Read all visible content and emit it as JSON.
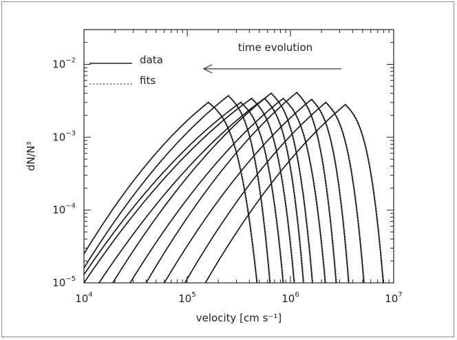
{
  "chart_data": {
    "type": "line",
    "xlabel": "velocity [cm s⁻¹]",
    "ylabel": "dN/N³",
    "xscale": "log",
    "yscale": "log",
    "xlim": [
      10000,
      10000000
    ],
    "ylim": [
      1e-05,
      0.03
    ],
    "x_ticks": [
      {
        "base": "10",
        "exp": "4",
        "value": 10000
      },
      {
        "base": "10",
        "exp": "5",
        "value": 100000
      },
      {
        "base": "10",
        "exp": "6",
        "value": 1000000
      },
      {
        "base": "10",
        "exp": "7",
        "value": 10000000
      }
    ],
    "y_ticks": [
      {
        "base": "10",
        "exp": "−5",
        "value": 1e-05
      },
      {
        "base": "10",
        "exp": "−4",
        "value": 0.0001
      },
      {
        "base": "10",
        "exp": "−3",
        "value": 0.001
      },
      {
        "base": "10",
        "exp": "−2",
        "value": 0.01
      }
    ],
    "legend": {
      "placement": "top-left",
      "entries": [
        {
          "label": "data",
          "style": "solid"
        },
        {
          "label": "fits",
          "style": "dotted"
        }
      ]
    },
    "annotation": {
      "text": "time evolution",
      "arrow": "leftward"
    },
    "grid": false,
    "series": [
      {
        "peak_x": 160000,
        "peak_y": 0.003,
        "left_x": 10000,
        "left_y": 2.5e-05,
        "right_x": 480000
      },
      {
        "peak_x": 250000,
        "peak_y": 0.0037,
        "left_x": 10000,
        "left_y": 1.6e-05,
        "right_x": 640000
      },
      {
        "peak_x": 330000,
        "peak_y": 0.003,
        "left_x": 10000,
        "left_y": 1.3e-05,
        "right_x": 860000
      },
      {
        "peak_x": 420000,
        "peak_y": 0.0034,
        "left_x": 10000,
        "left_y": 1e-05,
        "right_x": 1100000
      },
      {
        "peak_x": 560000,
        "peak_y": 0.0034,
        "left_x": 14000,
        "left_y": 1e-05,
        "right_x": 1350000
      },
      {
        "peak_x": 650000,
        "peak_y": 0.004,
        "left_x": 19000,
        "left_y": 1e-05,
        "right_x": 1650000
      },
      {
        "peak_x": 850000,
        "peak_y": 0.0034,
        "left_x": 28000,
        "left_y": 1e-05,
        "right_x": 2200000
      },
      {
        "peak_x": 1150000,
        "peak_y": 0.0041,
        "left_x": 40000,
        "left_y": 1e-05,
        "right_x": 2800000
      },
      {
        "peak_x": 1600000,
        "peak_y": 0.0033,
        "left_x": 60000,
        "left_y": 1e-05,
        "right_x": 3700000
      },
      {
        "peak_x": 2200000,
        "peak_y": 0.003,
        "left_x": 95000,
        "left_y": 1e-05,
        "right_x": 5200000
      },
      {
        "peak_x": 3400000,
        "peak_y": 0.0028,
        "left_x": 150000,
        "left_y": 1e-05,
        "right_x": 8000000
      }
    ]
  }
}
